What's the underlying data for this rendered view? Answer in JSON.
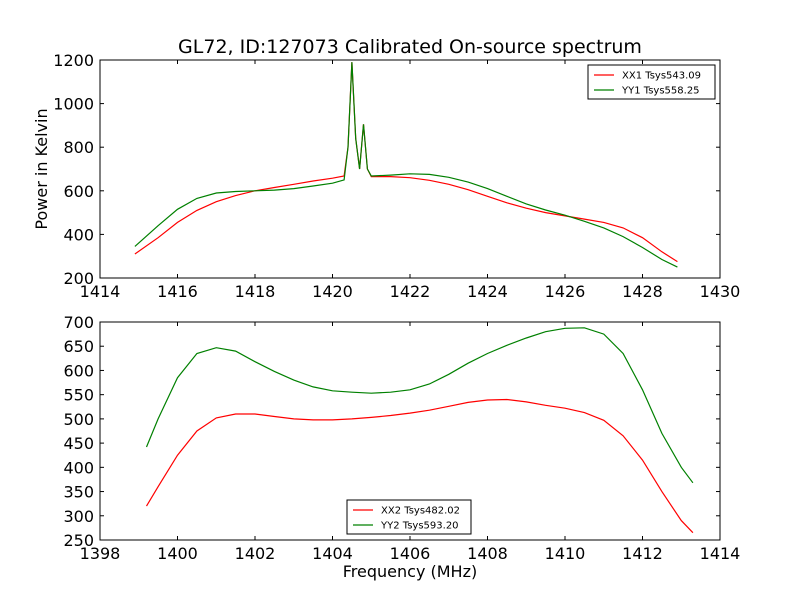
{
  "title": "GL72, ID:127073 Calibrated On-source spectrum",
  "chart_data": [
    {
      "type": "line",
      "ylabel": "Power in Kelvin",
      "xlabel": "",
      "xlim": [
        1414,
        1430
      ],
      "ylim": [
        200,
        1200
      ],
      "xticks": [
        1414,
        1416,
        1418,
        1420,
        1422,
        1424,
        1426,
        1428,
        1430
      ],
      "yticks": [
        200,
        400,
        600,
        800,
        1000,
        1200
      ],
      "legend_position": "top-right",
      "series": [
        {
          "name": "XX1 Tsys543.09",
          "color": "#ff0000",
          "x": [
            1414.9,
            1415.5,
            1416.0,
            1416.5,
            1417.0,
            1417.5,
            1418.0,
            1418.5,
            1419.0,
            1419.5,
            1420.0,
            1420.3,
            1420.4,
            1420.5,
            1420.6,
            1420.7,
            1420.8,
            1420.9,
            1421.0,
            1421.5,
            1422.0,
            1422.5,
            1423.0,
            1423.5,
            1424.0,
            1424.5,
            1425.0,
            1425.5,
            1426.0,
            1426.5,
            1427.0,
            1427.5,
            1428.0,
            1428.5,
            1428.9
          ],
          "y": [
            310,
            385,
            455,
            510,
            550,
            578,
            600,
            615,
            630,
            645,
            658,
            668,
            800,
            1190,
            840,
            700,
            905,
            700,
            665,
            665,
            660,
            648,
            630,
            605,
            575,
            545,
            520,
            500,
            485,
            470,
            455,
            430,
            385,
            320,
            275
          ]
        },
        {
          "name": "YY1 Tsys558.25",
          "color": "#008000",
          "x": [
            1414.9,
            1415.5,
            1416.0,
            1416.5,
            1417.0,
            1417.5,
            1418.0,
            1418.5,
            1419.0,
            1419.5,
            1420.0,
            1420.3,
            1420.4,
            1420.5,
            1420.6,
            1420.7,
            1420.8,
            1420.9,
            1421.0,
            1421.5,
            1422.0,
            1422.5,
            1423.0,
            1423.5,
            1424.0,
            1424.5,
            1425.0,
            1425.5,
            1426.0,
            1426.5,
            1427.0,
            1427.5,
            1428.0,
            1428.5,
            1428.9
          ],
          "y": [
            345,
            440,
            515,
            565,
            590,
            597,
            600,
            603,
            610,
            622,
            635,
            650,
            800,
            1190,
            840,
            700,
            905,
            700,
            668,
            672,
            678,
            675,
            662,
            640,
            610,
            575,
            540,
            512,
            488,
            460,
            430,
            390,
            340,
            285,
            250
          ]
        }
      ]
    },
    {
      "type": "line",
      "ylabel": "",
      "xlabel": "Frequency (MHz)",
      "xlim": [
        1398,
        1414
      ],
      "ylim": [
        250,
        700
      ],
      "xticks": [
        1398,
        1400,
        1402,
        1404,
        1406,
        1408,
        1410,
        1412,
        1414
      ],
      "yticks": [
        250,
        300,
        350,
        400,
        450,
        500,
        550,
        600,
        650,
        700
      ],
      "legend_position": "lower-center",
      "series": [
        {
          "name": "XX2 Tsys482.02",
          "color": "#ff0000",
          "x": [
            1399.2,
            1399.5,
            1400.0,
            1400.5,
            1401.0,
            1401.5,
            1402.0,
            1402.5,
            1403.0,
            1403.5,
            1404.0,
            1404.5,
            1405.0,
            1405.5,
            1406.0,
            1406.5,
            1407.0,
            1407.5,
            1408.0,
            1408.5,
            1409.0,
            1409.5,
            1410.0,
            1410.5,
            1411.0,
            1411.5,
            1412.0,
            1412.5,
            1413.0,
            1413.3
          ],
          "y": [
            320,
            360,
            425,
            475,
            502,
            510,
            510,
            505,
            500,
            498,
            498,
            500,
            503,
            507,
            512,
            518,
            526,
            534,
            539,
            540,
            535,
            528,
            522,
            513,
            497,
            465,
            415,
            350,
            290,
            265
          ]
        },
        {
          "name": "YY2 Tsys593.20",
          "color": "#008000",
          "x": [
            1399.2,
            1399.5,
            1400.0,
            1400.5,
            1401.0,
            1401.5,
            1402.0,
            1402.5,
            1403.0,
            1403.5,
            1404.0,
            1404.5,
            1405.0,
            1405.5,
            1406.0,
            1406.5,
            1407.0,
            1407.5,
            1408.0,
            1408.5,
            1409.0,
            1409.5,
            1410.0,
            1410.5,
            1411.0,
            1411.5,
            1412.0,
            1412.5,
            1413.0,
            1413.3
          ],
          "y": [
            442,
            500,
            585,
            635,
            647,
            640,
            618,
            598,
            580,
            566,
            558,
            555,
            553,
            555,
            560,
            572,
            592,
            615,
            635,
            652,
            667,
            680,
            687,
            688,
            675,
            635,
            560,
            470,
            400,
            368
          ]
        }
      ]
    }
  ]
}
